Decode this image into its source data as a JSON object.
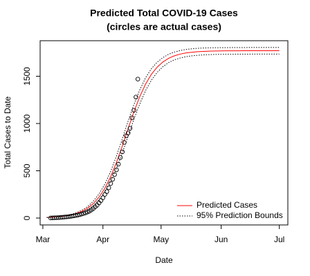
{
  "chart_data": {
    "type": "line",
    "title": "Predicted Total COVID-19 Cases",
    "subtitle": "(circles are actual cases)",
    "x_label": "Date",
    "y_label": "Total Cases to Date",
    "xlim": [
      -1.4,
      126.4
    ],
    "ylim": [
      -73,
      1876
    ],
    "xticks": [
      {
        "value": 0,
        "label": "Mar"
      },
      {
        "value": 31,
        "label": "Apr"
      },
      {
        "value": 61,
        "label": "May"
      },
      {
        "value": 92,
        "label": "Jun"
      },
      {
        "value": 122,
        "label": "Jul"
      }
    ],
    "yticks": [
      0,
      500,
      1000,
      1500
    ],
    "legend": "bottomright",
    "points": {
      "color": "#000",
      "x": [
        4,
        5,
        6,
        7,
        8,
        9,
        10,
        11,
        12,
        13,
        14,
        15,
        16,
        17,
        18,
        19,
        20,
        21,
        22,
        23,
        24,
        25,
        26,
        27,
        28,
        29,
        30,
        31,
        32,
        33,
        34,
        35,
        36,
        37,
        38,
        39,
        40,
        41,
        42,
        43,
        44,
        45,
        46,
        47,
        48,
        49
      ],
      "values": [
        1,
        2,
        3,
        4,
        5,
        6,
        8,
        10,
        12,
        14,
        17,
        20,
        23,
        27,
        31,
        36,
        42,
        48,
        55,
        63,
        72,
        85,
        100,
        118,
        135,
        160,
        185,
        215,
        250,
        280,
        320,
        365,
        410,
        460,
        510,
        570,
        640,
        700,
        800,
        870,
        900,
        950,
        1060,
        1140,
        1280,
        1470
      ]
    },
    "x": [
      2,
      5,
      8,
      11,
      14,
      17,
      20,
      23,
      26,
      29,
      32,
      35,
      38,
      41,
      44,
      47,
      50,
      53,
      56,
      59,
      62,
      65,
      68,
      71,
      74,
      77,
      80,
      83,
      86,
      89,
      92,
      95,
      98,
      101,
      104,
      107,
      110,
      113,
      116,
      119,
      122
    ],
    "series": [
      {
        "name": "Predicted Cases",
        "color": "#ff0000",
        "dash": "solid",
        "values": [
          5.9,
          9,
          13.5,
          20.5,
          30.9,
          46.5,
          69.4,
          103.5,
          152,
          221,
          315,
          438,
          590,
          762,
          946,
          1125,
          1284,
          1417,
          1521,
          1597,
          1652,
          1691,
          1717,
          1735,
          1747,
          1754,
          1760,
          1763,
          1766,
          1767,
          1768,
          1769,
          1769,
          1769,
          1770,
          1770,
          1770,
          1770,
          1770,
          1770,
          1770
        ]
      },
      {
        "name": "95% Prediction Bounds",
        "color": "#000000",
        "dash": "dotted",
        "upper": [
          7.1,
          10.5,
          15.9,
          24,
          36,
          54,
          81,
          120,
          177,
          255,
          359,
          494,
          658,
          838,
          1026,
          1203,
          1356,
          1484,
          1580,
          1649,
          1698,
          1734,
          1757,
          1773,
          1784,
          1791,
          1796,
          1799,
          1801,
          1802,
          1803,
          1803,
          1804,
          1804,
          1804,
          1805,
          1805,
          1805,
          1805,
          1805,
          1805
        ],
        "lower": [
          5,
          7.6,
          11.6,
          17.4,
          26,
          40,
          60,
          89,
          132,
          194,
          277,
          389,
          526,
          688,
          867,
          1046,
          1207,
          1348,
          1458,
          1542,
          1602,
          1646,
          1675,
          1694,
          1708,
          1716,
          1722,
          1726,
          1729,
          1731,
          1732,
          1733,
          1733,
          1734,
          1734,
          1734,
          1735,
          1735,
          1735,
          1735,
          1735
        ]
      }
    ]
  }
}
